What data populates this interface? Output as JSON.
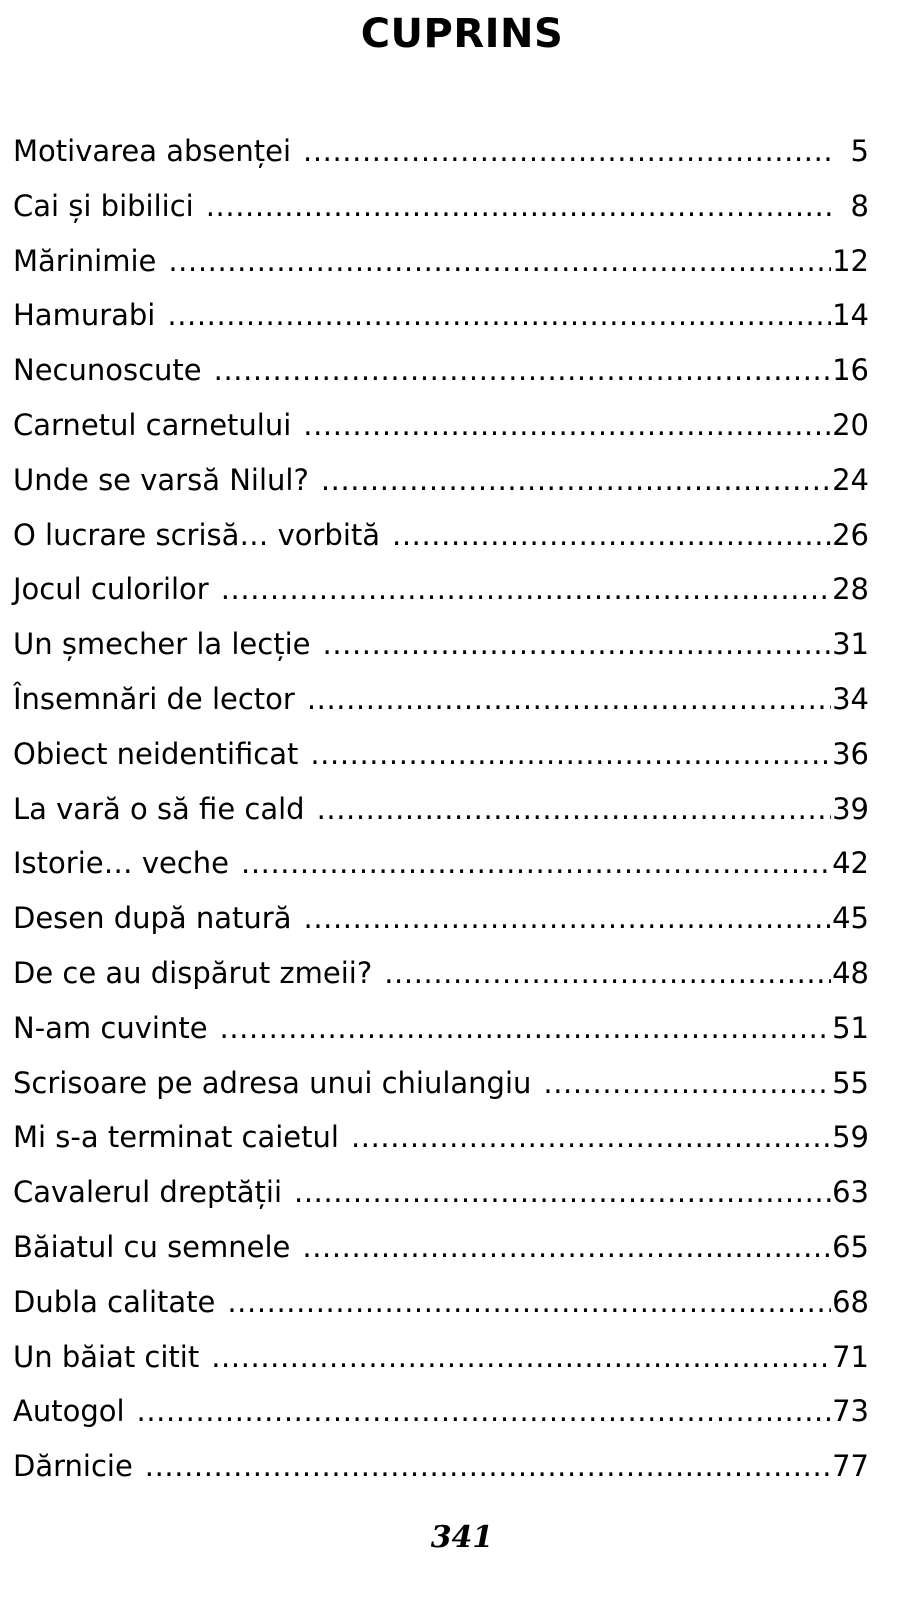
{
  "title": "CUPRINS",
  "entries": [
    {
      "title": "Motivarea absenței",
      "page": "5"
    },
    {
      "title": "Cai și bibilici",
      "page": "8"
    },
    {
      "title": "Mărinimie",
      "page": "12"
    },
    {
      "title": "Hamurabi",
      "page": "14"
    },
    {
      "title": "Necunoscute",
      "page": "16"
    },
    {
      "title": "Carnetul carnetului",
      "page": "20"
    },
    {
      "title": "Unde se varsă Nilul?",
      "page": "24"
    },
    {
      "title": "O lucrare scrisă… vorbită",
      "page": "26"
    },
    {
      "title": "Jocul culorilor",
      "page": "28"
    },
    {
      "title": "Un șmecher la lecție",
      "page": "31"
    },
    {
      "title": "Însemnări de lector",
      "page": "34"
    },
    {
      "title": "Obiect neidentificat",
      "page": "36"
    },
    {
      "title": "La vară o să fie cald",
      "page": "39"
    },
    {
      "title": "Istorie… veche",
      "page": "42"
    },
    {
      "title": "Desen după natură",
      "page": "45"
    },
    {
      "title": "De ce au dispărut zmeii?",
      "page": "48"
    },
    {
      "title": "N-am cuvinte",
      "page": "51"
    },
    {
      "title": "Scrisoare pe adresa unui chiulangiu",
      "page": "55"
    },
    {
      "title": "Mi s-a terminat caietul",
      "page": "59"
    },
    {
      "title": "Cavalerul dreptății",
      "page": "63"
    },
    {
      "title": "Băiatul cu semnele",
      "page": "65"
    },
    {
      "title": "Dubla calitate",
      "page": "68"
    },
    {
      "title": "Un băiat citit",
      "page": "71"
    },
    {
      "title": "Autogol",
      "page": "73"
    },
    {
      "title": "Dărnicie",
      "page": "77"
    }
  ],
  "page_number": "341"
}
